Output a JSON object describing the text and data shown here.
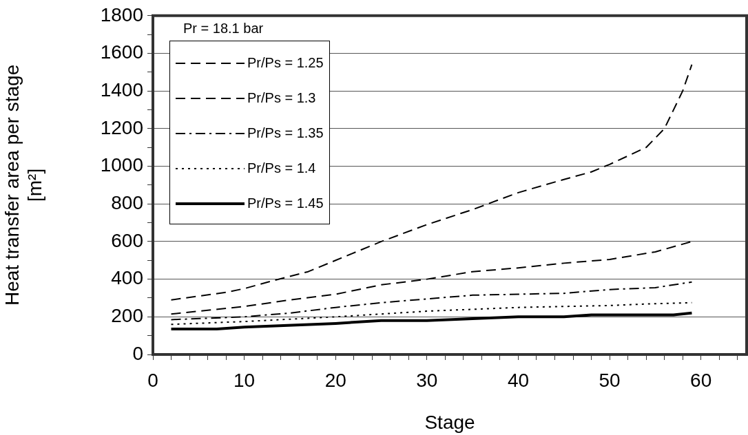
{
  "chart_data": {
    "type": "line",
    "xlabel": "Stage",
    "ylabel": "Heat transfer area per stage [m²]",
    "legend_title": "Pr = 18.1 bar",
    "legend": "top left",
    "grid": "y",
    "marker": "none",
    "xlim": [
      0,
      65
    ],
    "xticks": [
      0,
      {
        "value": 2,
        "label": null
      },
      {
        "value": 4,
        "label": null
      },
      {
        "value": 6,
        "label": null
      },
      {
        "value": 8,
        "label": null
      },
      10,
      {
        "value": 12,
        "label": null
      },
      {
        "value": 14,
        "label": null
      },
      {
        "value": 16,
        "label": null
      },
      {
        "value": 18,
        "label": null
      },
      20,
      {
        "value": 22,
        "label": null
      },
      {
        "value": 24,
        "label": null
      },
      {
        "value": 26,
        "label": null
      },
      {
        "value": 28,
        "label": null
      },
      30,
      {
        "value": 32,
        "label": null
      },
      {
        "value": 34,
        "label": null
      },
      {
        "value": 36,
        "label": null
      },
      {
        "value": 38,
        "label": null
      },
      40,
      {
        "value": 42,
        "label": null
      },
      {
        "value": 44,
        "label": null
      },
      {
        "value": 46,
        "label": null
      },
      {
        "value": 48,
        "label": null
      },
      50,
      {
        "value": 52,
        "label": null
      },
      {
        "value": 54,
        "label": null
      },
      {
        "value": 56,
        "label": null
      },
      {
        "value": 58,
        "label": null
      },
      60,
      {
        "value": 62,
        "label": null
      },
      {
        "value": 64,
        "label": null
      }
    ],
    "ylim": [
      0,
      1800
    ],
    "yticks": [
      0,
      {
        "value": 100,
        "label": null
      },
      200,
      {
        "value": 300,
        "label": null
      },
      400,
      {
        "value": 500,
        "label": null
      },
      600,
      {
        "value": 700,
        "label": null
      },
      800,
      {
        "value": 900,
        "label": null
      },
      1000,
      {
        "value": 1100,
        "label": null
      },
      1200,
      {
        "value": 1300,
        "label": null
      },
      1400,
      {
        "value": 1500,
        "label": null
      },
      1600,
      {
        "value": 1700,
        "label": null
      },
      1800
    ],
    "series": [
      {
        "name": "Pr/Ps = 1.25",
        "color": "#000000",
        "line_style": "dashed",
        "x": [
          2,
          5,
          8,
          10,
          13,
          17,
          20,
          25,
          30,
          35,
          40,
          45,
          48,
          50,
          54,
          56,
          58,
          59
        ],
        "values": [
          290,
          310,
          330,
          350,
          390,
          440,
          500,
          600,
          690,
          770,
          860,
          930,
          970,
          1010,
          1100,
          1200,
          1400,
          1540
        ]
      },
      {
        "name": "Pr/Ps = 1.3",
        "color": "#000000",
        "line_style": "dashed",
        "x": [
          2,
          5,
          10,
          15,
          20,
          25,
          30,
          35,
          40,
          45,
          50,
          55,
          59
        ],
        "values": [
          215,
          230,
          255,
          290,
          320,
          370,
          400,
          440,
          460,
          485,
          505,
          545,
          600
        ]
      },
      {
        "name": "Pr/Ps = 1.35",
        "color": "#000000",
        "line_style": "dashdot",
        "x": [
          2,
          10,
          15,
          20,
          25,
          30,
          35,
          40,
          45,
          50,
          55,
          59
        ],
        "values": [
          185,
          200,
          220,
          250,
          275,
          295,
          315,
          320,
          325,
          345,
          355,
          385
        ]
      },
      {
        "name": "Pr/Ps = 1.4",
        "color": "#000000",
        "line_style": "dotted",
        "x": [
          2,
          10,
          20,
          25,
          30,
          35,
          40,
          45,
          50,
          55,
          59
        ],
        "values": [
          160,
          175,
          200,
          215,
          230,
          240,
          250,
          255,
          260,
          270,
          275
        ]
      },
      {
        "name": "Pr/Ps = 1.45",
        "color": "#000000",
        "line_style": "solid",
        "x": [
          2,
          7,
          10,
          20,
          25,
          30,
          40,
          45,
          48,
          57,
          59
        ],
        "values": [
          135,
          135,
          145,
          165,
          180,
          180,
          200,
          200,
          210,
          210,
          220
        ]
      }
    ]
  }
}
